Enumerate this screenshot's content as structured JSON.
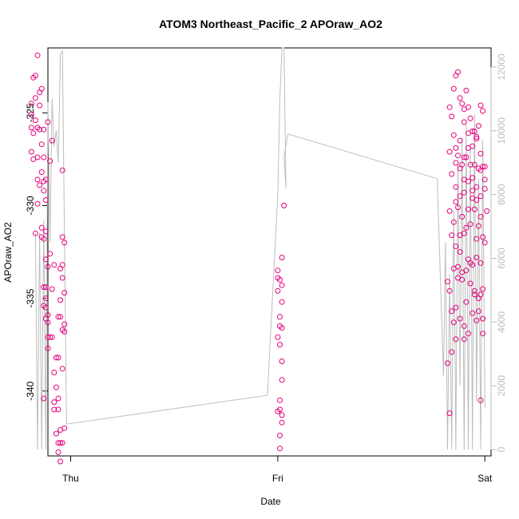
{
  "chart_data": {
    "type": "scatter",
    "title": "ATOM3 Northeast_Pacific_2 APOraw_AO2",
    "xlabel": "Date",
    "ylabel": "APOraw_AO2",
    "xlim": [
      -0.11,
      2.03
    ],
    "x_ticks": [
      {
        "label": "Thu",
        "value": 0
      },
      {
        "label": "Fri",
        "value": 1
      },
      {
        "label": "Sat",
        "value": 2
      }
    ],
    "y_left": {
      "lim": [
        -343.5,
        -321.5
      ],
      "ticks": [
        -325,
        -330,
        -335,
        -340
      ]
    },
    "y_right": {
      "lim": [
        -200,
        12600
      ],
      "ticks": [
        0,
        2000,
        4000,
        6000,
        8000,
        10000,
        12000
      ],
      "color": "#bdbdbd"
    },
    "colors": {
      "points": "#e6007e",
      "line": "#bdbdbd"
    },
    "series": [
      {
        "kind": "points",
        "axis": "left",
        "points": [
          [
            -0.16,
            -321.9
          ],
          [
            -0.17,
            -323.0
          ],
          [
            -0.18,
            -323.1
          ],
          [
            -0.19,
            -324.5
          ],
          [
            -0.14,
            -323.7
          ],
          [
            -0.15,
            -323.9
          ],
          [
            -0.17,
            -324.2
          ],
          [
            -0.15,
            -324.6
          ],
          [
            -0.19,
            -325.1
          ],
          [
            -0.17,
            -325.4
          ],
          [
            -0.19,
            -325.8
          ],
          [
            -0.18,
            -326.1
          ],
          [
            -0.16,
            -325.8
          ],
          [
            -0.15,
            -325.9
          ],
          [
            -0.13,
            -325.9
          ],
          [
            -0.11,
            -325.5
          ],
          [
            -0.14,
            -326.7
          ],
          [
            -0.19,
            -327.1
          ],
          [
            -0.18,
            -327.5
          ],
          [
            -0.16,
            -327.4
          ],
          [
            -0.13,
            -327.4
          ],
          [
            -0.14,
            -328.2
          ],
          [
            -0.15,
            -328.9
          ],
          [
            -0.13,
            -328.7
          ],
          [
            -0.12,
            -328.6
          ],
          [
            -0.16,
            -328.6
          ],
          [
            -0.13,
            -329.2
          ],
          [
            -0.12,
            -329.7
          ],
          [
            -0.16,
            -329.9
          ],
          [
            -0.14,
            -331.2
          ],
          [
            -0.12,
            -331.4
          ],
          [
            -0.17,
            -331.5
          ],
          [
            -0.14,
            -331.7
          ],
          [
            -0.13,
            -331.8
          ],
          [
            -0.12,
            -332.9
          ],
          [
            -0.11,
            -333.3
          ],
          [
            -0.12,
            -334.4
          ],
          [
            -0.13,
            -334.4
          ],
          [
            -0.12,
            -335.0
          ],
          [
            -0.13,
            -335.4
          ],
          [
            -0.12,
            -335.5
          ],
          [
            -0.11,
            -335.9
          ],
          [
            -0.12,
            -336.1
          ],
          [
            -0.11,
            -336.3
          ],
          [
            -0.13,
            -340.4
          ],
          [
            -0.11,
            -337.1
          ],
          [
            -0.1,
            -337.1
          ],
          [
            -0.09,
            -337.1
          ],
          [
            -0.11,
            -337.7
          ],
          [
            -0.09,
            -326.5
          ],
          [
            -0.1,
            -327.6
          ],
          [
            -0.1,
            -332.6
          ],
          [
            -0.08,
            -333.2
          ],
          [
            -0.09,
            -334.5
          ],
          [
            -0.07,
            -338.2
          ],
          [
            -0.06,
            -338.2
          ],
          [
            -0.08,
            -339.0
          ],
          [
            -0.07,
            -339.8
          ],
          [
            -0.08,
            -340.6
          ],
          [
            -0.06,
            -340.4
          ],
          [
            -0.08,
            -341.0
          ],
          [
            -0.06,
            -341.0
          ],
          [
            -0.07,
            -342.3
          ],
          [
            -0.05,
            -342.1
          ],
          [
            -0.06,
            -342.8
          ],
          [
            -0.05,
            -342.8
          ],
          [
            -0.04,
            -342.8
          ],
          [
            -0.06,
            -343.3
          ],
          [
            -0.05,
            -343.8
          ],
          [
            -0.04,
            -328.1
          ],
          [
            -0.04,
            -331.7
          ],
          [
            -0.03,
            -332.0
          ],
          [
            -0.04,
            -333.2
          ],
          [
            -0.05,
            -333.4
          ],
          [
            -0.04,
            -333.9
          ],
          [
            -0.03,
            -334.7
          ],
          [
            -0.05,
            -335.1
          ],
          [
            -0.06,
            -336.0
          ],
          [
            -0.05,
            -336.0
          ],
          [
            -0.04,
            -336.7
          ],
          [
            -0.03,
            -336.4
          ],
          [
            -0.03,
            -336.8
          ],
          [
            -0.04,
            -338.8
          ],
          [
            -0.03,
            -342.0
          ],
          [
            1.03,
            -330.0
          ],
          [
            1.02,
            -332.8
          ],
          [
            1.0,
            -333.5
          ],
          [
            1.0,
            -333.9
          ],
          [
            1.01,
            -334.0
          ],
          [
            1.0,
            -334.6
          ],
          [
            1.02,
            -334.3
          ],
          [
            1.02,
            -335.2
          ],
          [
            1.01,
            -336.0
          ],
          [
            1.01,
            -336.5
          ],
          [
            1.02,
            -336.6
          ],
          [
            1.0,
            -337.1
          ],
          [
            1.01,
            -337.5
          ],
          [
            1.02,
            -338.4
          ],
          [
            1.02,
            -339.4
          ],
          [
            1.01,
            -340.5
          ],
          [
            1.01,
            -341.0
          ],
          [
            1.0,
            -341.1
          ],
          [
            1.02,
            -341.3
          ],
          [
            1.02,
            -341.7
          ],
          [
            1.01,
            -342.4
          ],
          [
            1.01,
            -343.1
          ],
          [
            1.83,
            -324.7
          ],
          [
            1.84,
            -325.2
          ],
          [
            1.85,
            -323.7
          ],
          [
            1.86,
            -323.0
          ],
          [
            1.87,
            -322.8
          ],
          [
            1.88,
            -324.2
          ],
          [
            1.89,
            -324.5
          ],
          [
            1.9,
            -324.8
          ],
          [
            1.91,
            -323.8
          ],
          [
            1.92,
            -324.7
          ],
          [
            1.93,
            -325.3
          ],
          [
            1.94,
            -326.0
          ],
          [
            1.95,
            -326.0
          ],
          [
            1.96,
            -326.4
          ],
          [
            1.97,
            -325.7
          ],
          [
            1.98,
            -324.6
          ],
          [
            1.99,
            -324.9
          ],
          [
            1.83,
            -327.1
          ],
          [
            1.85,
            -326.2
          ],
          [
            1.87,
            -327.3
          ],
          [
            1.89,
            -327.8
          ],
          [
            1.91,
            -327.4
          ],
          [
            1.93,
            -327.8
          ],
          [
            1.95,
            -327.8
          ],
          [
            1.97,
            -328.0
          ],
          [
            1.99,
            -327.9
          ],
          [
            1.84,
            -328.3
          ],
          [
            1.86,
            -329.0
          ],
          [
            1.88,
            -329.5
          ],
          [
            1.9,
            -328.6
          ],
          [
            1.92,
            -328.7
          ],
          [
            1.94,
            -329.2
          ],
          [
            1.96,
            -329.0
          ],
          [
            1.98,
            -329.5
          ],
          [
            2.0,
            -327.9
          ],
          [
            1.83,
            -330.3
          ],
          [
            1.85,
            -330.9
          ],
          [
            1.87,
            -330.1
          ],
          [
            1.89,
            -330.6
          ],
          [
            1.91,
            -331.2
          ],
          [
            1.93,
            -331.0
          ],
          [
            1.95,
            -330.2
          ],
          [
            1.97,
            -331.1
          ],
          [
            1.99,
            -331.7
          ],
          [
            2.01,
            -330.3
          ],
          [
            1.84,
            -331.6
          ],
          [
            1.86,
            -332.2
          ],
          [
            1.88,
            -332.5
          ],
          [
            1.9,
            -331.5
          ],
          [
            1.92,
            -332.9
          ],
          [
            1.94,
            -333.2
          ],
          [
            1.96,
            -332.8
          ],
          [
            1.98,
            -333.1
          ],
          [
            2.0,
            -332.0
          ],
          [
            1.85,
            -333.4
          ],
          [
            1.87,
            -333.9
          ],
          [
            1.89,
            -334.0
          ],
          [
            1.91,
            -333.5
          ],
          [
            1.93,
            -334.2
          ],
          [
            1.95,
            -334.6
          ],
          [
            1.97,
            -335.0
          ],
          [
            1.99,
            -334.5
          ],
          [
            1.86,
            -335.5
          ],
          [
            1.88,
            -336.1
          ],
          [
            1.9,
            -336.5
          ],
          [
            1.92,
            -336.9
          ],
          [
            1.94,
            -335.8
          ],
          [
            1.96,
            -336.2
          ],
          [
            1.98,
            -334.8
          ],
          [
            1.82,
            -334.1
          ],
          [
            1.83,
            -334.6
          ],
          [
            1.84,
            -335.7
          ],
          [
            1.85,
            -336.3
          ],
          [
            1.86,
            -337.2
          ],
          [
            1.84,
            -337.9
          ],
          [
            1.82,
            -338.5
          ],
          [
            1.83,
            -341.2
          ],
          [
            1.9,
            -337.2
          ],
          [
            1.98,
            -340.5
          ],
          [
            1.99,
            -336.9
          ],
          [
            1.86,
            -326.9
          ],
          [
            1.88,
            -328.0
          ],
          [
            1.9,
            -327.4
          ],
          [
            1.92,
            -326.9
          ],
          [
            1.94,
            -328.5
          ],
          [
            1.96,
            -329.7
          ],
          [
            1.98,
            -328.1
          ],
          [
            2.0,
            -328.6
          ],
          [
            1.86,
            -329.8
          ],
          [
            1.88,
            -331.6
          ],
          [
            1.9,
            -329.3
          ],
          [
            1.92,
            -330.2
          ],
          [
            1.94,
            -329.6
          ],
          [
            1.96,
            -331.8
          ],
          [
            1.98,
            -330.6
          ],
          [
            1.87,
            -333.3
          ],
          [
            1.89,
            -333.6
          ],
          [
            1.91,
            -335.2
          ],
          [
            1.93,
            -333.1
          ],
          [
            1.95,
            -334.8
          ],
          [
            1.97,
            -335.7
          ],
          [
            1.99,
            -336.1
          ],
          [
            1.86,
            -327.7
          ],
          [
            1.88,
            -326.5
          ],
          [
            1.9,
            -325.5
          ],
          [
            1.92,
            -326.1
          ],
          [
            1.94,
            -326.8
          ],
          [
            1.96,
            -326.3
          ],
          [
            1.98,
            -327.2
          ],
          [
            2.0,
            -329.1
          ]
        ]
      },
      {
        "kind": "line",
        "axis": "right",
        "points": [
          [
            -0.17,
            6800
          ],
          [
            -0.16,
            0
          ],
          [
            -0.15,
            6800
          ],
          [
            -0.14,
            0
          ],
          [
            -0.13,
            7200
          ],
          [
            -0.12,
            0
          ],
          [
            -0.11,
            10900
          ],
          [
            -0.1,
            6500
          ],
          [
            -0.09,
            11000
          ],
          [
            -0.08,
            9500
          ],
          [
            -0.07,
            10000
          ],
          [
            -0.06,
            9000
          ],
          [
            -0.05,
            12400
          ],
          [
            -0.04,
            12500
          ],
          [
            -0.02,
            800
          ],
          [
            0.95,
            1700
          ],
          [
            1.0,
            8000
          ],
          [
            1.01,
            11000
          ],
          [
            1.02,
            12600
          ],
          [
            1.03,
            12600
          ],
          [
            1.04,
            8200
          ],
          [
            1.03,
            9200
          ],
          [
            1.05,
            9900
          ],
          [
            1.77,
            8500
          ],
          [
            1.8,
            2300
          ],
          [
            1.81,
            6500
          ],
          [
            1.82,
            0
          ],
          [
            1.83,
            5500
          ],
          [
            1.84,
            0
          ],
          [
            1.85,
            7500
          ],
          [
            1.86,
            0
          ],
          [
            1.87,
            9000
          ],
          [
            1.88,
            2000
          ],
          [
            1.89,
            9800
          ],
          [
            1.9,
            0
          ],
          [
            1.91,
            10200
          ],
          [
            1.92,
            0
          ],
          [
            1.93,
            9500
          ],
          [
            1.94,
            0
          ],
          [
            1.95,
            10500
          ],
          [
            1.96,
            1500
          ],
          [
            1.97,
            8500
          ],
          [
            1.98,
            0
          ],
          [
            1.99,
            9700
          ],
          [
            2.0,
            1300
          ]
        ]
      }
    ]
  }
}
